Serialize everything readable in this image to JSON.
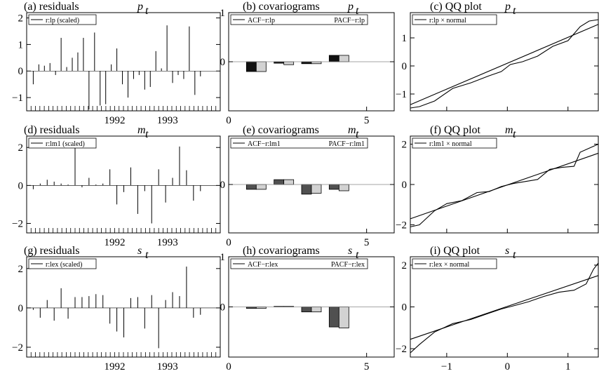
{
  "chart_data": [
    {
      "id": "a",
      "type": "bar",
      "title": "(a) residuals",
      "symbol": "p",
      "subscript": "t",
      "legend": [
        "r:lp (scaled)"
      ],
      "ylim": [
        -1.5,
        2.2
      ],
      "yticks": [
        -1,
        0,
        1,
        2
      ],
      "x_tick_labels": [
        {
          "label": "1992",
          "x": 20
        },
        {
          "label": "1993",
          "x": 32
        }
      ],
      "n_minor_ticks": 44,
      "values": [
        -0.5,
        0.25,
        0.2,
        0.3,
        -0.15,
        1.25,
        0.15,
        0.5,
        0.7,
        1.25,
        -1.45,
        1.45,
        -1.3,
        -1.25,
        0.25,
        0.85,
        -0.5,
        -1.0,
        -0.3,
        -0.15,
        -0.7,
        -0.6,
        0.75,
        0.1,
        1.72,
        -0.45,
        -0.15,
        -0.3,
        1.68,
        -0.9,
        -0.2
      ]
    },
    {
      "id": "b",
      "type": "bar",
      "title": "(b) covariograms",
      "symbol": "p",
      "subscript": "t",
      "legend": [
        "ACF−r:lp",
        "PACF−r:lp"
      ],
      "ylim": [
        -1,
        1
      ],
      "yticks": [
        -1,
        0,
        1
      ],
      "ytick_labels": [
        "",
        "0",
        "1"
      ],
      "xlim": [
        0,
        6
      ],
      "xticks": [
        0,
        5
      ],
      "lags": [
        1,
        2,
        3,
        4
      ],
      "series": [
        {
          "name": "ACF−r:lp",
          "color": "#111111",
          "values": [
            -0.2,
            -0.03,
            -0.04,
            0.13
          ]
        },
        {
          "name": "PACF−r:lp",
          "color": "#d2d2d2",
          "values": [
            -0.2,
            -0.06,
            -0.04,
            0.13
          ]
        }
      ]
    },
    {
      "id": "c",
      "type": "line",
      "title": "(c) QQ plot",
      "symbol": "p",
      "subscript": "t",
      "legend": [
        "r:lp × normal"
      ],
      "xlim": [
        -1.6,
        1.5
      ],
      "ylim": [
        -1.6,
        1.9
      ],
      "xticks": [
        -1,
        0,
        1
      ],
      "xtick_labels": [
        "",
        "",
        ""
      ],
      "yticks": [
        -1,
        0,
        1
      ],
      "reference_line": [
        [
          -1.6,
          -1.38
        ],
        [
          1.5,
          1.48
        ]
      ],
      "series": [
        {
          "x": [
            -1.6,
            -1.45,
            -1.2,
            -0.9,
            -0.6,
            -0.3,
            -0.1,
            0.05,
            0.25,
            0.5,
            0.75,
            1.0,
            1.2,
            1.35,
            1.5
          ],
          "y": [
            -1.5,
            -1.45,
            -1.25,
            -0.8,
            -0.6,
            -0.35,
            -0.2,
            0.05,
            0.15,
            0.35,
            0.7,
            0.9,
            1.4,
            1.6,
            1.65
          ]
        }
      ]
    },
    {
      "id": "d",
      "type": "bar",
      "title": "(d) residuals",
      "symbol": "m",
      "subscript": "t",
      "legend": [
        "r:lm1 (scaled)"
      ],
      "ylim": [
        -2.5,
        2.6
      ],
      "yticks": [
        -2,
        0,
        2
      ],
      "x_tick_labels": [
        {
          "label": "1992",
          "x": 20
        },
        {
          "label": "1993",
          "x": 32
        }
      ],
      "n_minor_ticks": 44,
      "values": [
        -0.2,
        0.1,
        0.3,
        0.2,
        0.1,
        0.05,
        2.2,
        -0.1,
        0.4,
        0.05,
        0.1,
        0.85,
        -1.0,
        -0.35,
        0.95,
        -1.5,
        -0.3,
        -2.0,
        0.85,
        -0.9,
        0.4,
        2.05,
        0.8,
        -0.8,
        -0.3
      ]
    },
    {
      "id": "e",
      "type": "bar",
      "title": "(e) covariograms",
      "symbol": "m",
      "subscript": "t",
      "legend": [
        "ACF−r:lm1",
        "PACF−r:lm1"
      ],
      "ylim": [
        -1,
        1
      ],
      "yticks": [
        -1,
        0,
        1
      ],
      "ytick_labels": [
        "",
        "0",
        ""
      ],
      "xlim": [
        0,
        6
      ],
      "xticks": [
        0,
        5
      ],
      "lags": [
        1,
        2,
        3,
        4
      ],
      "series": [
        {
          "name": "ACF−r:lm1",
          "color": "#505050",
          "values": [
            -0.1,
            0.1,
            -0.2,
            -0.1
          ]
        },
        {
          "name": "PACF−r:lm1",
          "color": "#d2d2d2",
          "values": [
            -0.1,
            0.1,
            -0.18,
            -0.13
          ]
        }
      ]
    },
    {
      "id": "f",
      "type": "line",
      "title": "(f) QQ plot",
      "symbol": "m",
      "subscript": "t",
      "legend": [
        "r:lm1 × normal"
      ],
      "xlim": [
        -1.6,
        1.5
      ],
      "ylim": [
        -2.4,
        2.4
      ],
      "xticks": [
        -1,
        0,
        1
      ],
      "xtick_labels": [
        "",
        "",
        ""
      ],
      "yticks": [
        -2,
        0,
        2
      ],
      "reference_line": [
        [
          -1.6,
          -1.7
        ],
        [
          1.5,
          1.55
        ]
      ],
      "series": [
        {
          "x": [
            -1.6,
            -1.45,
            -1.2,
            -1.0,
            -0.75,
            -0.5,
            -0.3,
            -0.1,
            0.1,
            0.3,
            0.5,
            0.7,
            0.9,
            1.1,
            1.2,
            1.35,
            1.5
          ],
          "y": [
            -2.1,
            -2.0,
            -1.3,
            -0.95,
            -0.8,
            -0.4,
            -0.35,
            -0.1,
            0.05,
            0.15,
            0.25,
            0.75,
            0.85,
            0.9,
            1.6,
            1.8,
            2.0
          ]
        }
      ]
    },
    {
      "id": "g",
      "type": "bar",
      "title": "(g) residuals",
      "symbol": "s",
      "subscript": "t",
      "legend": [
        "r:lex (scaled)"
      ],
      "ylim": [
        -2.5,
        2.6
      ],
      "yticks": [
        -2,
        0,
        2
      ],
      "x_tick_labels": [
        {
          "label": "1992",
          "x": 20
        },
        {
          "label": "1993",
          "x": 32
        }
      ],
      "n_minor_ticks": 44,
      "values": [
        -0.1,
        -0.5,
        0.4,
        -0.65,
        1.0,
        -0.55,
        0.55,
        0.55,
        0.6,
        0.7,
        0.65,
        -0.8,
        -1.2,
        -1.5,
        0.5,
        0.55,
        -1.05,
        0.65,
        -2.05,
        0.4,
        0.8,
        0.6,
        2.1,
        -0.5,
        -0.35
      ]
    },
    {
      "id": "h",
      "type": "bar",
      "title": "(h) covariograms",
      "symbol": "s",
      "subscript": "t",
      "legend": [
        "ACF−r:lex",
        "PACF−r:lex"
      ],
      "ylim": [
        -1,
        1
      ],
      "yticks": [
        -1,
        0,
        1
      ],
      "ytick_labels": [
        "",
        "0",
        "1"
      ],
      "xlim": [
        0,
        6
      ],
      "xticks": [
        0,
        5
      ],
      "lags": [
        1,
        2,
        3,
        4
      ],
      "series": [
        {
          "name": "ACF−r:lex",
          "color": "#505050",
          "values": [
            -0.03,
            0.01,
            -0.1,
            -0.4
          ]
        },
        {
          "name": "PACF−r:lex",
          "color": "#d2d2d2",
          "values": [
            -0.03,
            0.01,
            -0.1,
            -0.42
          ]
        }
      ]
    },
    {
      "id": "i",
      "type": "line",
      "title": "(i) QQ plot",
      "symbol": "s",
      "subscript": "t",
      "legend": [
        "r:lex × normal"
      ],
      "xlim": [
        -1.6,
        1.5
      ],
      "ylim": [
        -2.4,
        2.4
      ],
      "xticks": [
        -1,
        0,
        1
      ],
      "xtick_labels": [
        "−1",
        "0",
        "1"
      ],
      "yticks": [
        -2,
        0,
        2
      ],
      "reference_line": [
        [
          -1.6,
          -1.55
        ],
        [
          1.5,
          1.5
        ]
      ],
      "series": [
        {
          "x": [
            -1.6,
            -1.45,
            -1.2,
            -0.9,
            -0.6,
            -0.3,
            -0.1,
            0.1,
            0.35,
            0.6,
            0.85,
            1.1,
            1.3,
            1.42,
            1.5
          ],
          "y": [
            -2.2,
            -1.8,
            -1.2,
            -0.8,
            -0.6,
            -0.3,
            -0.1,
            0.05,
            0.25,
            0.5,
            0.7,
            0.8,
            1.1,
            1.8,
            2.1
          ]
        }
      ]
    }
  ]
}
